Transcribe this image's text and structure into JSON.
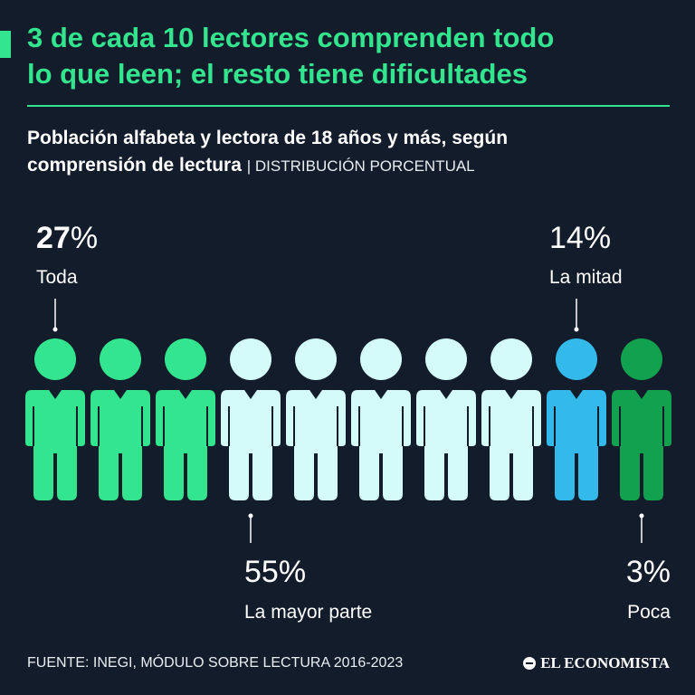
{
  "header": {
    "title_line1": "3 de cada 10 lectores comprenden todo",
    "title_line2": "lo que leen; el resto tiene dificultades",
    "subtitle_line1": "Población alfabeta y lectora de 18 años y más, según",
    "subtitle_line2": "comprensión de lectura",
    "subtitle_unit": "| DISTRIBUCIÓN PORCENTUAL"
  },
  "colors": {
    "background": "#131c2a",
    "accent": "#33e58f",
    "toda": "#33e58f",
    "mayor_parte": "#d4fafa",
    "mitad": "#33b9ea",
    "poca": "#12a24f"
  },
  "chart_data": {
    "type": "pictogram",
    "title": "3 de cada 10 lectores comprenden todo lo que leen; el resto tiene dificultades",
    "subtitle": "Población alfabeta y lectora de 18 años y más, según comprensión de lectura",
    "unit": "DISTRIBUCIÓN PORCENTUAL",
    "total_figures": 10,
    "categories": [
      "Toda",
      "La mayor parte",
      "La mitad",
      "Poca"
    ],
    "values": [
      27,
      55,
      14,
      3
    ],
    "labels": [
      "27%",
      "55%",
      "14%",
      "3%"
    ],
    "figures_per_category": [
      3,
      5,
      1,
      1
    ],
    "category_colors": [
      "#33e58f",
      "#d4fafa",
      "#33b9ea",
      "#12a24f"
    ],
    "label_positions": [
      "top",
      "bottom",
      "top",
      "bottom"
    ]
  },
  "footer": {
    "source": "FUENTE: INEGI, MÓDULO SOBRE LECTURA 2016-2023",
    "brand": "EL ECONOMISTA"
  }
}
